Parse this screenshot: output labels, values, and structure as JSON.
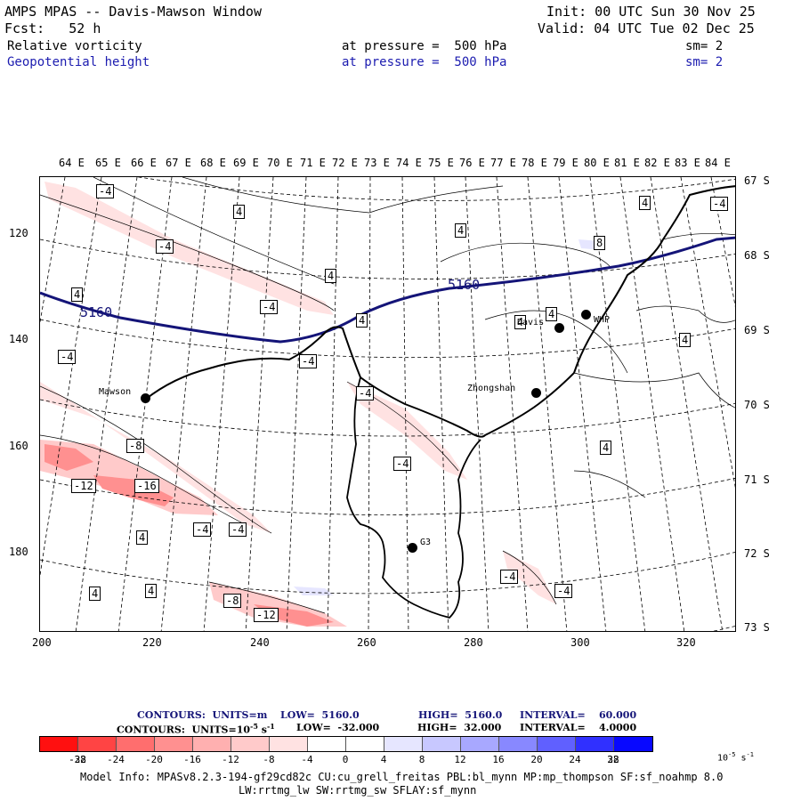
{
  "header": {
    "title": "AMPS MPAS -- Davis-Mawson Window",
    "init": "Init: 00 UTC Sun 30 Nov 25",
    "forecast": "Fcst:   52 h",
    "valid": "Valid: 04 UTC Tue 02 Dec 25",
    "field1": {
      "name": "Relative vorticity",
      "pressure": "at pressure =  500 hPa",
      "smooth": "sm= 2"
    },
    "field2": {
      "name": "Geopotential height",
      "pressure": "at pressure =  500 hPa",
      "smooth": "sm= 2"
    }
  },
  "map": {
    "lon_labels": [
      "64 E",
      "65 E",
      "66 E",
      "67 E",
      "68 E",
      "69 E",
      "70 E",
      "71 E",
      "72 E",
      "73 E",
      "74 E",
      "75 E",
      "76 E",
      "77 E",
      "78 E",
      "79 E",
      "80 E",
      "81 E",
      "82 E",
      "83 E",
      "84 E"
    ],
    "lat_labels": [
      "67 S",
      "68 S",
      "69 S",
      "70 S",
      "71 S",
      "72 S",
      "73 S"
    ],
    "x_ticks": [
      "200",
      "220",
      "240",
      "260",
      "280",
      "300",
      "320"
    ],
    "y_ticks": [
      "120",
      "140",
      "160",
      "180"
    ],
    "height_contour_label": "5160",
    "vorticity_labels": [
      "-4",
      "4",
      "-4",
      "4",
      "4",
      "-4",
      "4",
      "8",
      "4",
      "-4",
      "4",
      "4",
      "4",
      "-4",
      "-4",
      "4",
      "-8",
      "-12",
      "-16",
      "-4",
      "4",
      "-4",
      "-4",
      "4",
      "4",
      "-8",
      "-12",
      "-4",
      "-4",
      "4",
      "-4"
    ],
    "stations": [
      {
        "name": "Mawson"
      },
      {
        "name": "Davis"
      },
      {
        "name": "WHP"
      },
      {
        "name": "Zhongshan"
      },
      {
        "name": "G3"
      }
    ]
  },
  "contour_info": {
    "line1": {
      "label": "CONTOURS:  UNITS=m",
      "low": "LOW=  5160.0",
      "high": "HIGH=  5160.0",
      "interval": "INTERVAL=    60.000"
    },
    "line2": {
      "label": "CONTOURS:  UNITS=10",
      "exp": "-5",
      "unit": " s",
      "unit_exp": "-1",
      "low": "LOW=  -32.000",
      "high": "HIGH=  32.000",
      "interval": "INTERVAL=    4.0000"
    }
  },
  "colorbar": {
    "colors": [
      "#ff1010",
      "#ff4444",
      "#ff6e6e",
      "#ff9090",
      "#ffb0b0",
      "#ffcaca",
      "#ffe2e2",
      "#ffffff",
      "#ffffff",
      "#e6e6ff",
      "#c8c8ff",
      "#a8a8ff",
      "#8888ff",
      "#6060ff",
      "#3030ff",
      "#0808ff"
    ],
    "labels": [
      "-32",
      "-28",
      "-24",
      "-20",
      "-16",
      "-12",
      "-8",
      "-4",
      "0",
      "4",
      "8",
      "12",
      "16",
      "20",
      "24",
      "28",
      "32"
    ],
    "unit": "10",
    "unit_exp": "-5",
    "unit_s": " s",
    "unit_s_exp": "-1"
  },
  "model_info": {
    "line1": "Model Info: MPASv8.2.3-194-gf29cd82c CU:cu_grell_freitas PBL:bl_mynn MP:mp_thompson SF:sf_noahmp 8.0",
    "line2": "LW:rrtmg_lw SW:rrtmg_sw SFLAY:sf_mynn"
  }
}
